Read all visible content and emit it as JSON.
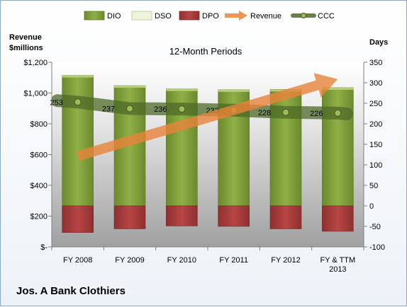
{
  "chart_data": {
    "type": "bar",
    "title": "12-Month Periods",
    "company": "Jos. A Bank Clothiers",
    "ylabel_left": [
      "Revenue",
      "$millions"
    ],
    "ylabel_right": "Days",
    "categories": [
      [
        "FY 2008"
      ],
      [
        "FY 2009"
      ],
      [
        "FY 2010"
      ],
      [
        "FY 2011"
      ],
      [
        "FY 2012"
      ],
      [
        "FY & TTM",
        "2013"
      ]
    ],
    "left_axis": {
      "min": 0,
      "max": 1200,
      "step": 200,
      "tick_labels": [
        "$-",
        "$200",
        "$400",
        "$600",
        "$800",
        "$1,000",
        "$1,200"
      ]
    },
    "right_axis": {
      "min": -100,
      "max": 350,
      "step": 50,
      "tick_labels": [
        "-100",
        "-50",
        "0",
        "50",
        "100",
        "150",
        "200",
        "250",
        "300",
        "350"
      ]
    },
    "series": [
      {
        "name": "DIO",
        "axis": "days",
        "values": [
          318,
          293,
          285,
          283,
          284,
          288
        ],
        "color": "#7a9a3a"
      },
      {
        "name": "DSO",
        "axis": "days",
        "values": [
          0,
          0,
          0,
          0,
          0,
          0
        ],
        "color": "#eef3dc"
      },
      {
        "name": "DPO",
        "axis": "days",
        "values": [
          -65,
          -56,
          -49,
          -50,
          -56,
          -62
        ],
        "color": "#a33b3b"
      },
      {
        "name": "Revenue",
        "axis": "revenue",
        "values": [
          590,
          695,
          800,
          890,
          990,
          1090
        ],
        "color": "#e9833a"
      },
      {
        "name": "CCC",
        "axis": "days",
        "values": [
          253,
          237,
          236,
          233,
          228,
          226
        ],
        "labels": [
          "253",
          "237",
          "236",
          "233",
          "228",
          "226"
        ],
        "color": "#4d6a28"
      }
    ],
    "grid": false,
    "legend": "top"
  }
}
